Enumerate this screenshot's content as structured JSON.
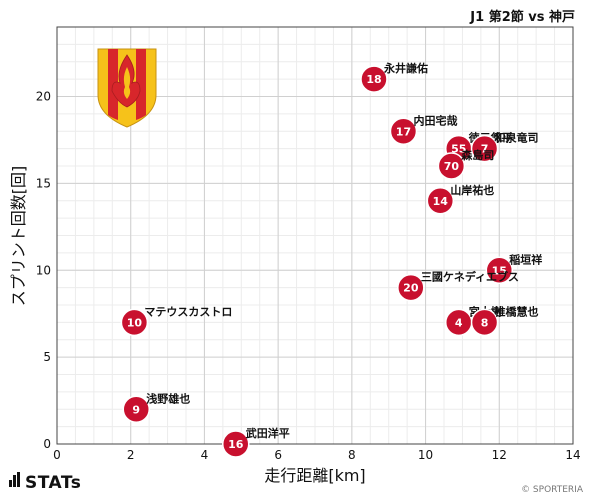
{
  "header": {
    "match_title": "J1 第2節 vs 神戸"
  },
  "footer": {
    "brand": "STATs",
    "credit": "© SPORTERIA"
  },
  "colors": {
    "marker": "#c8102e",
    "grid": "#d0d0d0",
    "grid_minor": "#ececec",
    "crest_red": "#d7262b",
    "crest_yellow": "#f6c21a"
  },
  "icons": {
    "logo": "club-crest-icon",
    "brand_mark": "stats-bars-icon"
  },
  "chart_data": {
    "type": "scatter",
    "xlabel": "走行距離[km]",
    "ylabel": "スプリント回数[回]",
    "xlim": [
      0,
      14
    ],
    "ylim": [
      0,
      24
    ],
    "xticks": [
      0,
      2,
      4,
      6,
      8,
      10,
      12,
      14
    ],
    "yticks": [
      0,
      5,
      10,
      15,
      20
    ],
    "grid": true,
    "points": [
      {
        "number": "18",
        "name": "永井謙佑",
        "x": 8.6,
        "y": 21
      },
      {
        "number": "17",
        "name": "内田宅哉",
        "x": 9.4,
        "y": 18
      },
      {
        "number": "55",
        "name": "徳元悠平",
        "x": 10.9,
        "y": 17
      },
      {
        "number": "7",
        "name": "和泉竜司",
        "x": 11.6,
        "y": 17
      },
      {
        "number": "70",
        "name": "森島司",
        "x": 10.7,
        "y": 16
      },
      {
        "number": "14",
        "name": "山岸祐也",
        "x": 10.4,
        "y": 14
      },
      {
        "number": "15",
        "name": "稲垣祥",
        "x": 12.0,
        "y": 10
      },
      {
        "number": "20",
        "name": "三國ケネディエブス",
        "x": 9.6,
        "y": 9
      },
      {
        "number": "10",
        "name": "マテウスカストロ",
        "x": 2.1,
        "y": 7
      },
      {
        "number": "4",
        "name": "宮大樹",
        "x": 10.9,
        "y": 7
      },
      {
        "number": "8",
        "name": "椎橋慧也",
        "x": 11.6,
        "y": 7
      },
      {
        "number": "9",
        "name": "浅野雄也",
        "x": 2.15,
        "y": 2
      },
      {
        "number": "16",
        "name": "武田洋平",
        "x": 4.85,
        "y": 0
      }
    ]
  }
}
